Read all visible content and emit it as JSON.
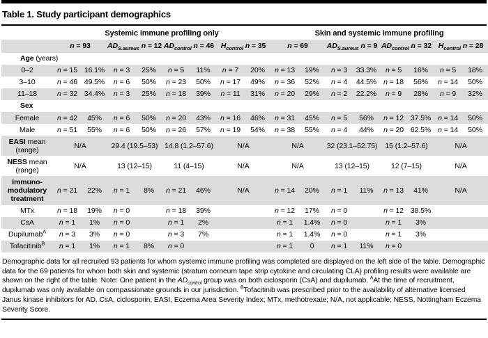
{
  "title": "Table 1. Study participant demographics",
  "colors": {
    "stripe": "#dcdcdc",
    "rule": "#000000",
    "text": "#000000"
  },
  "table": {
    "groups": [
      "Systemic immune profiling only",
      "Skin and systemic immune profiling"
    ],
    "col_headers": [
      {
        "pre": "",
        "sub": "",
        "n": "n = 93"
      },
      {
        "pre": "AD",
        "sub": "S.aureus",
        "n": "n = 12"
      },
      {
        "pre": "AD",
        "sub": "control",
        "n": "n = 46"
      },
      {
        "pre": "H",
        "sub": "control",
        "n": "n = 35"
      },
      {
        "pre": "",
        "sub": "",
        "n": "n = 69"
      },
      {
        "pre": "AD",
        "sub": "S.aureus",
        "n": "n = 9"
      },
      {
        "pre": "AD",
        "sub": "control",
        "n": "n = 32"
      },
      {
        "pre": "H",
        "sub": "control",
        "n": "n = 28"
      }
    ],
    "rows": [
      {
        "label": {
          "b": "Age",
          "r": " (years)"
        },
        "section": true,
        "shade": false,
        "cells": []
      },
      {
        "label": {
          "r": "0–2"
        },
        "shade": true,
        "cells": [
          "n = 15",
          "16.1%",
          "n = 3",
          "25%",
          "n = 5",
          "11%",
          "n = 7",
          "20%",
          "n = 13",
          "19%",
          "n = 3",
          "33.3%",
          "n = 5",
          "16%",
          "n = 5",
          "18%"
        ]
      },
      {
        "label": {
          "r": "3–10"
        },
        "shade": false,
        "cells": [
          "n = 46",
          "49.5%",
          "n = 6",
          "50%",
          "n = 23",
          "50%",
          "n = 17",
          "49%",
          "n = 36",
          "52%",
          "n = 4",
          "44.5%",
          "n = 18",
          "56%",
          "n = 14",
          "50%"
        ]
      },
      {
        "label": {
          "r": "11–18"
        },
        "shade": true,
        "cells": [
          "n = 32",
          "34.4%",
          "n = 3",
          "25%",
          "n = 18",
          "39%",
          "n = 11",
          "31%",
          "n = 20",
          "29%",
          "n = 2",
          "22.2%",
          "n = 9",
          "28%",
          "n = 9",
          "32%"
        ]
      },
      {
        "label": {
          "b": "Sex"
        },
        "section": true,
        "shade": false,
        "cells": []
      },
      {
        "label": {
          "r": "Female"
        },
        "shade": true,
        "cells": [
          "n = 42",
          "45%",
          "n = 6",
          "50%",
          "n = 20",
          "43%",
          "n = 16",
          "46%",
          "n = 31",
          "45%",
          "n = 5",
          "56%",
          "n = 12",
          "37.5%",
          "n = 14",
          "50%"
        ]
      },
      {
        "label": {
          "r": "Male"
        },
        "shade": false,
        "cells": [
          "n = 51",
          "55%",
          "n = 6",
          "50%",
          "n = 26",
          "57%",
          "n = 19",
          "54%",
          "n = 38",
          "55%",
          "n = 4",
          "44%",
          "n = 20",
          "62.5%",
          "n = 14",
          "50%"
        ]
      },
      {
        "label": {
          "b": "EASI",
          "r": " mean (range)"
        },
        "shade": true,
        "cells": [
          [
            "N/A",
            2
          ],
          [
            "29.4 (19.5–53)",
            2
          ],
          [
            "14.8 (1.2–57.6)",
            2
          ],
          [
            "N/A",
            2
          ],
          [
            "N/A",
            2
          ],
          [
            "32 (23.1–52.75)",
            2
          ],
          [
            "15 (1.2–57.6)",
            2
          ],
          [
            "N/A",
            2
          ]
        ]
      },
      {
        "label": {
          "b": "NESS",
          "r": " mean (range)"
        },
        "shade": false,
        "cells": [
          [
            "N/A",
            2
          ],
          [
            "13 (12–15)",
            2
          ],
          [
            "11 (4–15)",
            2
          ],
          [
            "N/A",
            2
          ],
          [
            "N/A",
            2
          ],
          [
            "13 (12–15)",
            2
          ],
          [
            "12 (7–15)",
            2
          ],
          [
            "N/A",
            2
          ]
        ]
      },
      {
        "label": {
          "b": "Immuno-modulatory treatment"
        },
        "shade": true,
        "cells": [
          "n = 21",
          "22%",
          "n = 1",
          "8%",
          "n = 21",
          "46%",
          [
            "N/A",
            2
          ],
          "n = 14",
          "20%",
          "n = 1",
          "11%",
          "n = 13",
          "41%",
          [
            "N/A",
            2
          ]
        ]
      },
      {
        "label": {
          "r": "MTx"
        },
        "shade": false,
        "cells": [
          "n = 18",
          "19%",
          "n = 0",
          "",
          "n = 18",
          "39%",
          [
            "",
            2
          ],
          "n = 12",
          "17%",
          "n = 0",
          "",
          "n = 12",
          "38.5%",
          [
            "",
            2
          ]
        ]
      },
      {
        "label": {
          "r": "CsA"
        },
        "shade": true,
        "cells": [
          "n = 1",
          "1%",
          "n = 0",
          "",
          "n = 1",
          "2%",
          [
            "",
            2
          ],
          "n = 1",
          "1.4%",
          "n = 0",
          "",
          "n = 1",
          "3%",
          [
            "",
            2
          ]
        ]
      },
      {
        "label": {
          "r": "Dupilumab",
          "sup": "A"
        },
        "shade": false,
        "cells": [
          "n = 3",
          "3%",
          "n = 0",
          "",
          "n = 3",
          "7%",
          [
            "",
            2
          ],
          "n = 1",
          "1.4%",
          "n = 0",
          "",
          "n = 1",
          "3%",
          [
            "",
            2
          ]
        ]
      },
      {
        "label": {
          "r": "Tofacitinib",
          "sup": "B"
        },
        "shade": true,
        "cells": [
          "n = 1",
          "1%",
          "n = 1",
          "8%",
          "n = 0",
          "",
          [
            "",
            2
          ],
          "n = 1",
          "0",
          "n = 1",
          "11%",
          "n = 0",
          "",
          [
            "",
            2
          ]
        ]
      }
    ]
  },
  "footnote_parts": [
    {
      "t": "text",
      "v": "Demographic data for all recruited 93 patients for whom systemic immune profiling was completed are displayed on the left side of the table. Demographic data for the 69 patients for whom both skin and systemic (stratum corneum tape strip cytokine and circulating CLA) profiling results were available are shown on the right of the table. Note: One patient in the "
    },
    {
      "t": "i",
      "v": "AD"
    },
    {
      "t": "sub",
      "v": "control"
    },
    {
      "t": "text",
      "v": " group was on both ciclosporin (CsA) and dupilumab. "
    },
    {
      "t": "sup",
      "v": "A"
    },
    {
      "t": "text",
      "v": "At the time of recruitment, dupilumab was only available on compassionate grounds in our jurisdiction. "
    },
    {
      "t": "sup",
      "v": "B"
    },
    {
      "t": "text",
      "v": "Tofacitinib was prescribed prior to the availability of alternative licensed Janus kinase inhibitors for AD. CsA, ciclosporin; EASI, Eczema Area Severity Index; MTx, methotrexate; N/A, not applicable; NESS, Nottingham Eczema Severity Score."
    }
  ]
}
